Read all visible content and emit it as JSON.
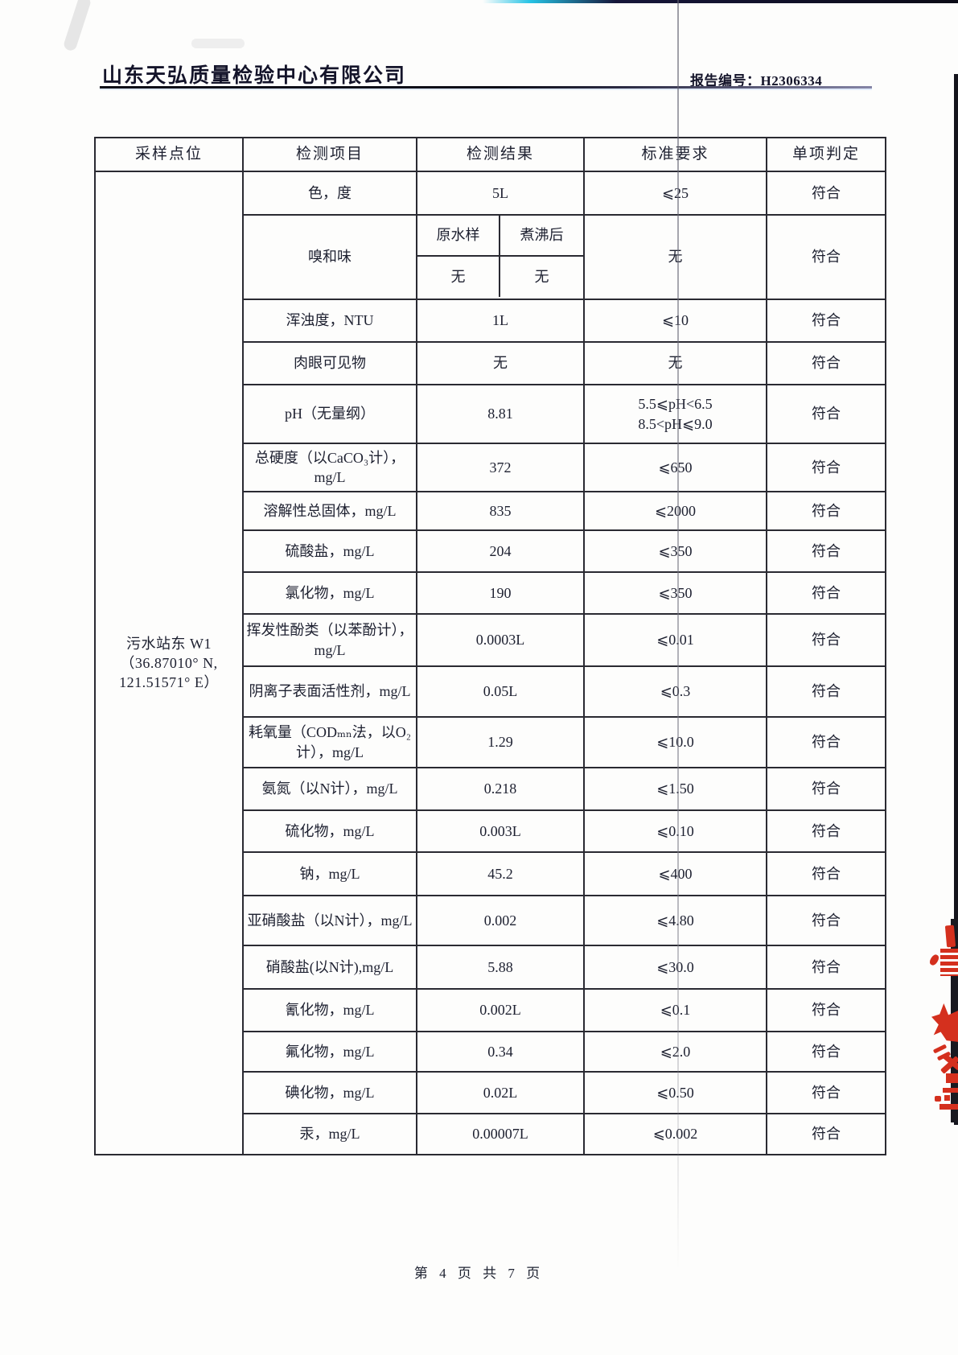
{
  "header": {
    "company": "山东天弘质量检验中心有限公司",
    "report_no_label": "报告编号：",
    "report_no": "H2306334"
  },
  "footer": {
    "text": "第 4 页 共 7 页"
  },
  "colors": {
    "stamp_red": "#d4301e",
    "table_border": "#2a2a32",
    "text": "#1d2030"
  },
  "table": {
    "columns": [
      "采样点位",
      "检测项目",
      "检测结果",
      "标准要求",
      "单项判定"
    ],
    "sampling_point": {
      "name": "污水站东 W1",
      "coord_line1": "（36.87010° N,",
      "coord_line2": "121.51571° E）"
    },
    "odor": {
      "sub_headers": [
        "原水样",
        "煮沸后"
      ],
      "sub_values": [
        "无",
        "无"
      ]
    },
    "rows": [
      {
        "item": "色，度",
        "result": "5L",
        "standard": "⩽25",
        "judgment": "符合"
      },
      {
        "item": "嗅和味",
        "result": "",
        "standard": "无",
        "judgment": "符合"
      },
      {
        "item": "浑浊度，NTU",
        "result": "1L",
        "standard": "⩽10",
        "judgment": "符合"
      },
      {
        "item": "肉眼可见物",
        "result": "无",
        "standard": "无",
        "judgment": "符合"
      },
      {
        "item": "pH（无量纲）",
        "result": "8.81",
        "standard": "5.5⩽pH<6.5\n8.5<pH⩽9.0",
        "judgment": "符合"
      },
      {
        "item": "总硬度（以CaCO₃计），mg/L",
        "result": "372",
        "standard": "⩽650",
        "judgment": "符合"
      },
      {
        "item": "溶解性总固体，mg/L",
        "result": "835",
        "standard": "⩽2000",
        "judgment": "符合"
      },
      {
        "item": "硫酸盐，mg/L",
        "result": "204",
        "standard": "⩽350",
        "judgment": "符合"
      },
      {
        "item": "氯化物，mg/L",
        "result": "190",
        "standard": "⩽350",
        "judgment": "符合"
      },
      {
        "item": "挥发性酚类（以苯酚计），mg/L",
        "result": "0.0003L",
        "standard": "⩽0.01",
        "judgment": "符合"
      },
      {
        "item": "阴离子表面活性剂，mg/L",
        "result": "0.05L",
        "standard": "⩽0.3",
        "judgment": "符合"
      },
      {
        "item": "耗氧量（CODₘₙ法，以O₂计），mg/L",
        "result": "1.29",
        "standard": "⩽10.0",
        "judgment": "符合"
      },
      {
        "item": "氨氮（以N计），mg/L",
        "result": "0.218",
        "standard": "⩽1.50",
        "judgment": "符合"
      },
      {
        "item": "硫化物，mg/L",
        "result": "0.003L",
        "standard": "⩽0.10",
        "judgment": "符合"
      },
      {
        "item": "钠，mg/L",
        "result": "45.2",
        "standard": "⩽400",
        "judgment": "符合"
      },
      {
        "item": "亚硝酸盐（以N计），mg/L",
        "result": "0.002",
        "standard": "⩽4.80",
        "judgment": "符合"
      },
      {
        "item": "硝酸盐(以N计),mg/L",
        "result": "5.88",
        "standard": "⩽30.0",
        "judgment": "符合"
      },
      {
        "item": "氰化物，mg/L",
        "result": "0.002L",
        "standard": "⩽0.1",
        "judgment": "符合"
      },
      {
        "item": "氟化物，mg/L",
        "result": "0.34",
        "standard": "⩽2.0",
        "judgment": "符合"
      },
      {
        "item": "碘化物，mg/L",
        "result": "0.02L",
        "standard": "⩽0.50",
        "judgment": "符合"
      },
      {
        "item": "汞，mg/L",
        "result": "0.00007L",
        "standard": "⩽0.002",
        "judgment": "符合"
      }
    ]
  }
}
